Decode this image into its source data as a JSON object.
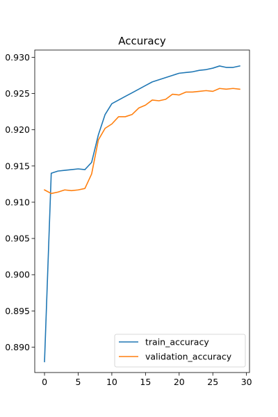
{
  "chart_data": {
    "type": "line",
    "title": "Accuracy",
    "xlabel": "",
    "ylabel": "",
    "xlim": [
      -1.45,
      30.45
    ],
    "ylim": [
      0.8865,
      0.931
    ],
    "x_ticks": [
      0,
      5,
      10,
      15,
      20,
      25,
      30
    ],
    "y_ticks": [
      0.89,
      0.895,
      0.9,
      0.905,
      0.91,
      0.915,
      0.92,
      0.925,
      0.93
    ],
    "y_tick_labels": [
      "0.890",
      "0.895",
      "0.900",
      "0.905",
      "0.910",
      "0.915",
      "0.920",
      "0.925",
      "0.930"
    ],
    "grid": false,
    "legend_position": "lower-right",
    "x": [
      0,
      1,
      2,
      3,
      4,
      5,
      6,
      7,
      8,
      9,
      10,
      11,
      12,
      13,
      14,
      15,
      16,
      17,
      18,
      19,
      20,
      21,
      22,
      23,
      24,
      25,
      26,
      27,
      28,
      29
    ],
    "series": [
      {
        "name": "train_accuracy",
        "color": "#1f77b4",
        "values": [
          0.888,
          0.914,
          0.9143,
          0.9144,
          0.9145,
          0.9146,
          0.9145,
          0.9155,
          0.9193,
          0.9221,
          0.9236,
          0.9241,
          0.9246,
          0.9251,
          0.9256,
          0.9261,
          0.9266,
          0.9269,
          0.9272,
          0.9275,
          0.9278,
          0.9279,
          0.928,
          0.9282,
          0.9283,
          0.9285,
          0.9288,
          0.9286,
          0.9286,
          0.9288
        ]
      },
      {
        "name": "validation_accuracy",
        "color": "#ff7f0e",
        "values": [
          0.9117,
          0.9112,
          0.9114,
          0.9117,
          0.9116,
          0.9117,
          0.9119,
          0.9139,
          0.9186,
          0.9202,
          0.9208,
          0.9218,
          0.9218,
          0.9221,
          0.923,
          0.9234,
          0.9241,
          0.924,
          0.9242,
          0.9249,
          0.9248,
          0.9252,
          0.9252,
          0.9253,
          0.9254,
          0.9253,
          0.9257,
          0.9256,
          0.9257,
          0.9256
        ]
      }
    ]
  }
}
